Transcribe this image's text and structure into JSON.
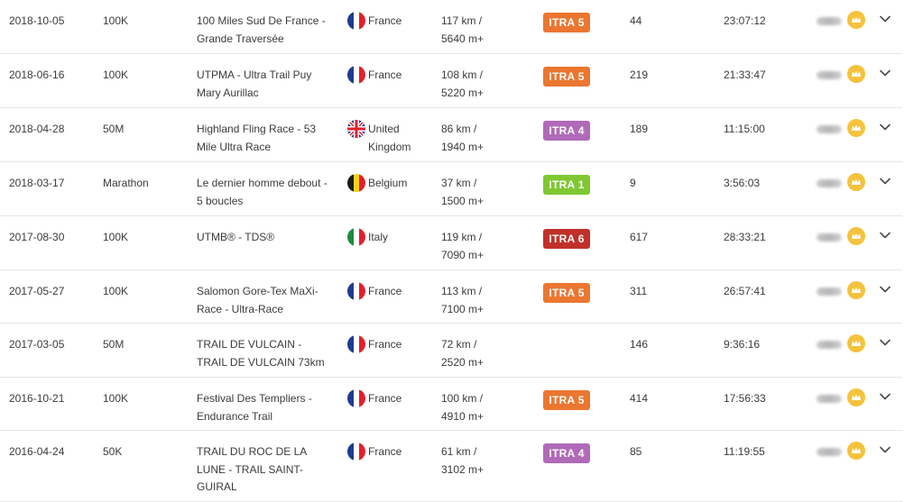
{
  "colors": {
    "itra_1": "#7fc832",
    "itra_4": "#b06ab8",
    "itra_5": "#eb7630",
    "itra_6": "#c1302a",
    "crown": "#f5c23c"
  },
  "rows": [
    {
      "date": "2018-10-05",
      "distance": "100K",
      "race_name": "100 Miles Sud De France - Grande Traversée",
      "flag_icon": "france-flag-icon",
      "country": "France",
      "km": "117 km /",
      "elevation": "5640 m+",
      "itra": "ITRA 5",
      "itra_level": 5,
      "rank": "44",
      "time": "23:07:12"
    },
    {
      "date": "2018-06-16",
      "distance": "100K",
      "race_name": "UTPMA - Ultra Trail Puy Mary Aurillac",
      "flag_icon": "france-flag-icon",
      "country": "France",
      "km": "108 km /",
      "elevation": "5220 m+",
      "itra": "ITRA 5",
      "itra_level": 5,
      "rank": "219",
      "time": "21:33:47"
    },
    {
      "date": "2018-04-28",
      "distance": "50M",
      "race_name": "Highland Fling Race - 53 Mile Ultra Race",
      "flag_icon": "united-kingdom-flag-icon",
      "country": "United Kingdom",
      "km": "86 km /",
      "elevation": "1940 m+",
      "itra": "ITRA 4",
      "itra_level": 4,
      "rank": "189",
      "time": "11:15:00"
    },
    {
      "date": "2018-03-17",
      "distance": "Marathon",
      "race_name": "Le dernier homme debout - 5 boucles",
      "flag_icon": "belgium-flag-icon",
      "country": "Belgium",
      "km": "37 km /",
      "elevation": "1500 m+",
      "itra": "ITRA 1",
      "itra_level": 1,
      "rank": "9",
      "time": "3:56:03"
    },
    {
      "date": "2017-08-30",
      "distance": "100K",
      "race_name": "UTMB® - TDS®",
      "flag_icon": "italy-flag-icon",
      "country": "Italy",
      "km": "119 km /",
      "elevation": "7090 m+",
      "itra": "ITRA 6",
      "itra_level": 6,
      "rank": "617",
      "time": "28:33:21"
    },
    {
      "date": "2017-05-27",
      "distance": "100K",
      "race_name": "Salomon Gore-Tex MaXi-Race - Ultra-Race",
      "flag_icon": "france-flag-icon",
      "country": "France",
      "km": "113 km /",
      "elevation": "7100 m+",
      "itra": "ITRA 5",
      "itra_level": 5,
      "rank": "311",
      "time": "26:57:41"
    },
    {
      "date": "2017-03-05",
      "distance": "50M",
      "race_name": "TRAIL DE VULCAIN - TRAIL DE VULCAIN 73km",
      "flag_icon": "france-flag-icon",
      "country": "France",
      "km": "72 km /",
      "elevation": "2520 m+",
      "itra": "",
      "itra_level": 0,
      "rank": "146",
      "time": "9:36:16"
    },
    {
      "date": "2016-10-21",
      "distance": "100K",
      "race_name": "Festival Des Templiers - Endurance Trail",
      "flag_icon": "france-flag-icon",
      "country": "France",
      "km": "100 km /",
      "elevation": "4910 m+",
      "itra": "ITRA 5",
      "itra_level": 5,
      "rank": "414",
      "time": "17:56:33"
    },
    {
      "date": "2016-04-24",
      "distance": "50K",
      "race_name": "TRAIL DU ROC DE LA LUNE - TRAIL SAINT-GUIRAL",
      "flag_icon": "france-flag-icon",
      "country": "France",
      "km": "61 km /",
      "elevation": "3102 m+",
      "itra": "ITRA 4",
      "itra_level": 4,
      "rank": "85",
      "time": "11:19:55"
    }
  ]
}
